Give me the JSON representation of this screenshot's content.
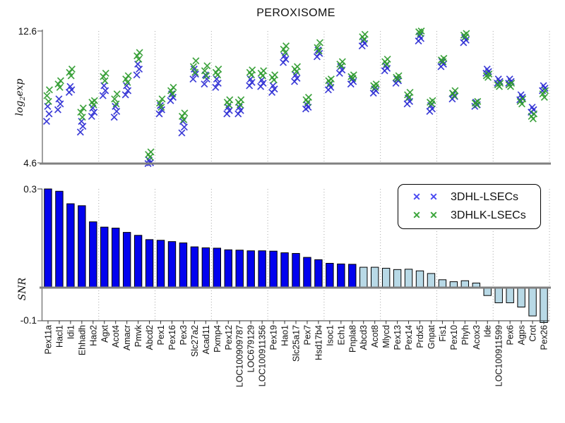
{
  "chart_data": {
    "type": "combo",
    "title": "PEROXISOME",
    "panels": [
      {
        "type": "scatter",
        "ylabel": "log2exp",
        "ylabel_parts": [
          "log",
          "2",
          "exp"
        ],
        "ylim": [
          4.6,
          12.6
        ],
        "ytick_labels": [
          "12.6",
          "4.6"
        ],
        "grid": "dotted-vertical-every-5",
        "marker": "x"
      },
      {
        "type": "bar",
        "ylabel": "SNR",
        "ylim": [
          -0.1,
          0.3
        ],
        "ytick_labels": [
          "0.3",
          "-0.1"
        ],
        "grid": "dotted-vertical-every-5",
        "zero_line": true
      }
    ],
    "legend": [
      {
        "label": "3DHL-LSECs",
        "series": "blue",
        "color": "#4a4af2",
        "marker": "x"
      },
      {
        "label": "3DHLK-LSECs",
        "series": "green",
        "color": "#3aa43a",
        "marker": "x"
      }
    ],
    "legend_position": "upper-right-of-bar-panel",
    "genes": [
      {
        "name": "Pex11a",
        "snr": 0.3,
        "green": [
          8.35,
          8.7,
          9.05
        ],
        "blue": [
          7.15,
          7.6,
          8.05
        ]
      },
      {
        "name": "Hacl1",
        "snr": 0.293,
        "green": [
          9.2,
          9.4,
          9.6
        ],
        "blue": [
          7.85,
          8.2,
          8.5
        ]
      },
      {
        "name": "Idi1",
        "snr": 0.255,
        "green": [
          9.9,
          10.1,
          10.3
        ],
        "blue": [
          8.9,
          9.05,
          9.25
        ]
      },
      {
        "name": "Ehhadh",
        "snr": 0.249,
        "green": [
          7.4,
          7.7,
          7.95
        ],
        "blue": [
          6.5,
          6.85,
          7.15
        ]
      },
      {
        "name": "Hao2",
        "snr": 0.2,
        "green": [
          8.15,
          8.3,
          8.4
        ],
        "blue": [
          7.45,
          7.7,
          7.95
        ]
      },
      {
        "name": "Agxt",
        "snr": 0.184,
        "green": [
          9.6,
          9.85,
          10.05
        ],
        "blue": [
          8.7,
          9.0,
          9.3
        ]
      },
      {
        "name": "Acot4",
        "snr": 0.181,
        "green": [
          8.2,
          8.5,
          8.8
        ],
        "blue": [
          7.4,
          7.75,
          8.05
        ]
      },
      {
        "name": "Amacr",
        "snr": 0.168,
        "green": [
          9.5,
          9.7,
          9.9
        ],
        "blue": [
          8.75,
          9.0,
          9.3
        ]
      },
      {
        "name": "Pmvk",
        "snr": 0.159,
        "green": [
          10.9,
          11.1,
          11.3
        ],
        "blue": [
          9.95,
          10.3,
          10.6
        ]
      },
      {
        "name": "Abcd2",
        "snr": 0.146,
        "green": [
          5.0,
          5.15,
          5.3
        ],
        "blue": [
          4.6,
          4.65,
          4.8
        ]
      },
      {
        "name": "Pex1",
        "snr": 0.144,
        "green": [
          8.0,
          8.25,
          8.5
        ],
        "blue": [
          7.6,
          7.85,
          8.1
        ]
      },
      {
        "name": "Pex16",
        "snr": 0.14,
        "green": [
          8.8,
          9.0,
          9.2
        ],
        "blue": [
          8.4,
          8.6,
          8.8
        ]
      },
      {
        "name": "Pex3",
        "snr": 0.136,
        "green": [
          7.25,
          7.45,
          7.65
        ],
        "blue": [
          6.45,
          6.8,
          7.15
        ]
      },
      {
        "name": "Slc27a2",
        "snr": 0.124,
        "green": [
          10.1,
          10.45,
          10.8
        ],
        "blue": [
          9.7,
          10.0,
          10.3
        ]
      },
      {
        "name": "Acad11",
        "snr": 0.121,
        "green": [
          9.9,
          10.2,
          10.5
        ],
        "blue": [
          9.4,
          9.7,
          9.95
        ]
      },
      {
        "name": "Pxmp4",
        "snr": 0.12,
        "green": [
          9.95,
          10.1,
          10.3
        ],
        "blue": [
          9.2,
          9.45,
          9.7
        ]
      },
      {
        "name": "Pex12",
        "snr": 0.115,
        "green": [
          8.15,
          8.3,
          8.45
        ],
        "blue": [
          7.6,
          7.8,
          8.0
        ]
      },
      {
        "name": "LOC100909787",
        "snr": 0.114,
        "green": [
          8.15,
          8.3,
          8.45
        ],
        "blue": [
          7.6,
          7.8,
          8.0
        ]
      },
      {
        "name": "LOC679129",
        "snr": 0.112,
        "green": [
          9.95,
          10.1,
          10.25
        ],
        "blue": [
          9.3,
          9.5,
          9.7
        ]
      },
      {
        "name": "LOC100911356",
        "snr": 0.112,
        "green": [
          9.9,
          10.05,
          10.2
        ],
        "blue": [
          9.25,
          9.45,
          9.65
        ]
      },
      {
        "name": "Pex19",
        "snr": 0.111,
        "green": [
          9.65,
          9.8,
          9.95
        ],
        "blue": [
          8.9,
          9.1,
          9.3
        ]
      },
      {
        "name": "Hao1",
        "snr": 0.106,
        "green": [
          11.3,
          11.5,
          11.7
        ],
        "blue": [
          10.7,
          10.9,
          11.1
        ]
      },
      {
        "name": "Slc25a17",
        "snr": 0.104,
        "green": [
          10.15,
          10.3,
          10.45
        ],
        "blue": [
          9.55,
          9.75,
          9.95
        ]
      },
      {
        "name": "Pex7",
        "snr": 0.092,
        "green": [
          8.3,
          8.45,
          8.6
        ],
        "blue": [
          7.9,
          8.0,
          8.15
        ]
      },
      {
        "name": "Hsd17b4",
        "snr": 0.085,
        "green": [
          11.4,
          11.6,
          11.9
        ],
        "blue": [
          11.05,
          11.25,
          11.45
        ]
      },
      {
        "name": "Isoc1",
        "snr": 0.074,
        "green": [
          9.45,
          9.6,
          9.7
        ],
        "blue": [
          9.05,
          9.2,
          9.35
        ]
      },
      {
        "name": "Ech1",
        "snr": 0.072,
        "green": [
          10.5,
          10.6,
          10.75
        ],
        "blue": [
          10.05,
          10.25,
          10.45
        ]
      },
      {
        "name": "Pnpla8",
        "snr": 0.071,
        "green": [
          9.75,
          9.85,
          9.95
        ],
        "blue": [
          9.4,
          9.55,
          9.7
        ]
      },
      {
        "name": "Abcd3",
        "snr": 0.062,
        "green": [
          12.1,
          12.25,
          12.4
        ],
        "blue": [
          11.7,
          11.85,
          12.0
        ]
      },
      {
        "name": "Acot8",
        "snr": 0.062,
        "green": [
          9.2,
          9.3,
          9.4
        ],
        "blue": [
          8.85,
          9.0,
          9.1
        ]
      },
      {
        "name": "Mlycd",
        "snr": 0.059,
        "green": [
          10.6,
          10.75,
          10.9
        ],
        "blue": [
          10.2,
          10.35,
          10.5
        ]
      },
      {
        "name": "Pex13",
        "snr": 0.055,
        "green": [
          9.7,
          9.8,
          9.9
        ],
        "blue": [
          9.45,
          9.6,
          9.7
        ]
      },
      {
        "name": "Pex14",
        "snr": 0.056,
        "green": [
          8.6,
          8.75,
          8.9
        ],
        "blue": [
          8.2,
          8.35,
          8.55
        ]
      },
      {
        "name": "Prdx5",
        "snr": 0.051,
        "green": [
          12.45,
          12.55,
          12.6
        ],
        "blue": [
          12.0,
          12.15,
          12.3
        ]
      },
      {
        "name": "Gnpat",
        "snr": 0.043,
        "green": [
          8.2,
          8.3,
          8.4
        ],
        "blue": [
          7.75,
          7.9,
          8.1
        ]
      },
      {
        "name": "Fis1",
        "snr": 0.024,
        "green": [
          10.75,
          10.85,
          10.95
        ],
        "blue": [
          10.45,
          10.6,
          10.75
        ]
      },
      {
        "name": "Pex10",
        "snr": 0.018,
        "green": [
          8.7,
          8.85,
          9.0
        ],
        "blue": [
          8.5,
          8.65,
          8.8
        ]
      },
      {
        "name": "Phyh",
        "snr": 0.021,
        "green": [
          12.25,
          12.35,
          12.45
        ],
        "blue": [
          11.9,
          12.05,
          12.2
        ]
      },
      {
        "name": "Acox3",
        "snr": 0.014,
        "green": [
          8.15,
          8.25,
          8.35
        ],
        "blue": [
          8.05,
          8.15,
          8.3
        ]
      },
      {
        "name": "Ide",
        "snr": -0.024,
        "green": [
          9.8,
          9.9,
          10.0
        ],
        "blue": [
          10.05,
          10.15,
          10.3
        ]
      },
      {
        "name": "LOC100911599",
        "snr": -0.046,
        "green": [
          9.25,
          9.35,
          9.45
        ],
        "blue": [
          9.45,
          9.55,
          9.7
        ]
      },
      {
        "name": "Pex6",
        "snr": -0.046,
        "green": [
          9.25,
          9.35,
          9.45
        ],
        "blue": [
          9.45,
          9.55,
          9.7
        ]
      },
      {
        "name": "Agps",
        "snr": -0.059,
        "green": [
          8.2,
          8.35,
          8.5
        ],
        "blue": [
          8.45,
          8.6,
          8.75
        ]
      },
      {
        "name": "Crot",
        "snr": -0.086,
        "green": [
          7.3,
          7.45,
          7.6
        ],
        "blue": [
          7.7,
          7.85,
          8.0
        ]
      },
      {
        "name": "Pex26",
        "snr": -0.106,
        "green": [
          8.6,
          8.8,
          9.0
        ],
        "blue": [
          9.0,
          9.15,
          9.3
        ]
      }
    ]
  },
  "colors": {
    "bar_dark": "#0202ee",
    "bar_light": "#b8d9e6",
    "marker_blue": "#2c2cd4",
    "marker_green": "#2f9b2f",
    "axis_gray": "#808080",
    "grid": "#a8a8a8",
    "text": "#111111"
  }
}
